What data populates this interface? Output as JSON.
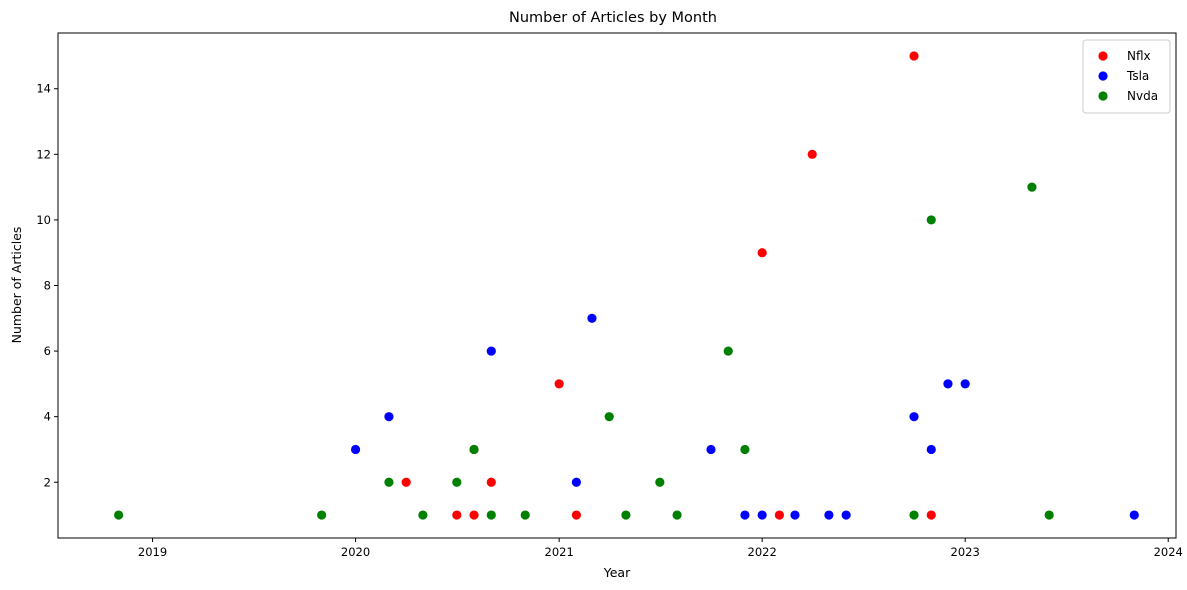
{
  "chart_data": {
    "type": "scatter",
    "title": "Number of Articles by Month",
    "xlabel": "Year",
    "ylabel": "Number of Articles",
    "x_ticks": [
      "2019",
      "2020",
      "2021",
      "2022",
      "2023",
      "2024"
    ],
    "y_ticks": [
      "2",
      "4",
      "6",
      "8",
      "10",
      "12",
      "14"
    ],
    "xlim": [
      "2018-07-15",
      "2024-01-15"
    ],
    "ylim": [
      0.3,
      15.7
    ],
    "grid": false,
    "legend_position": "top-right",
    "series": [
      {
        "name": "Nflx",
        "color": "#ff0000",
        "points": [
          {
            "x": "2020-04-01",
            "y": 2
          },
          {
            "x": "2020-07-01",
            "y": 1
          },
          {
            "x": "2020-08-01",
            "y": 1
          },
          {
            "x": "2020-08-01",
            "y": 3
          },
          {
            "x": "2020-09-01",
            "y": 2
          },
          {
            "x": "2021-01-01",
            "y": 5
          },
          {
            "x": "2021-02-01",
            "y": 1
          },
          {
            "x": "2022-01-01",
            "y": 9
          },
          {
            "x": "2022-02-01",
            "y": 1
          },
          {
            "x": "2022-04-01",
            "y": 12
          },
          {
            "x": "2022-10-01",
            "y": 15
          },
          {
            "x": "2022-11-01",
            "y": 1
          }
        ]
      },
      {
        "name": "Tsla",
        "color": "#0000ff",
        "points": [
          {
            "x": "2020-01-01",
            "y": 3
          },
          {
            "x": "2020-03-01",
            "y": 4
          },
          {
            "x": "2020-09-01",
            "y": 6
          },
          {
            "x": "2021-02-01",
            "y": 2
          },
          {
            "x": "2021-03-01",
            "y": 7
          },
          {
            "x": "2021-10-01",
            "y": 3
          },
          {
            "x": "2021-12-01",
            "y": 1
          },
          {
            "x": "2022-01-01",
            "y": 1
          },
          {
            "x": "2022-03-01",
            "y": 1
          },
          {
            "x": "2022-05-01",
            "y": 1
          },
          {
            "x": "2022-06-01",
            "y": 1
          },
          {
            "x": "2022-10-01",
            "y": 4
          },
          {
            "x": "2022-11-01",
            "y": 3
          },
          {
            "x": "2022-12-01",
            "y": 5
          },
          {
            "x": "2023-01-01",
            "y": 5
          },
          {
            "x": "2023-11-01",
            "y": 1
          }
        ]
      },
      {
        "name": "Nvda",
        "color": "#008000",
        "points": [
          {
            "x": "2018-11-01",
            "y": 1
          },
          {
            "x": "2019-11-01",
            "y": 1
          },
          {
            "x": "2020-03-01",
            "y": 2
          },
          {
            "x": "2020-05-01",
            "y": 1
          },
          {
            "x": "2020-07-01",
            "y": 2
          },
          {
            "x": "2020-08-01",
            "y": 3
          },
          {
            "x": "2020-09-01",
            "y": 1
          },
          {
            "x": "2020-11-01",
            "y": 1
          },
          {
            "x": "2021-04-01",
            "y": 4
          },
          {
            "x": "2021-05-01",
            "y": 1
          },
          {
            "x": "2021-07-01",
            "y": 2
          },
          {
            "x": "2021-08-01",
            "y": 1
          },
          {
            "x": "2021-11-01",
            "y": 6
          },
          {
            "x": "2021-12-01",
            "y": 3
          },
          {
            "x": "2022-10-01",
            "y": 1
          },
          {
            "x": "2022-11-01",
            "y": 10
          },
          {
            "x": "2023-05-01",
            "y": 11
          },
          {
            "x": "2023-06-01",
            "y": 1
          }
        ]
      }
    ]
  }
}
